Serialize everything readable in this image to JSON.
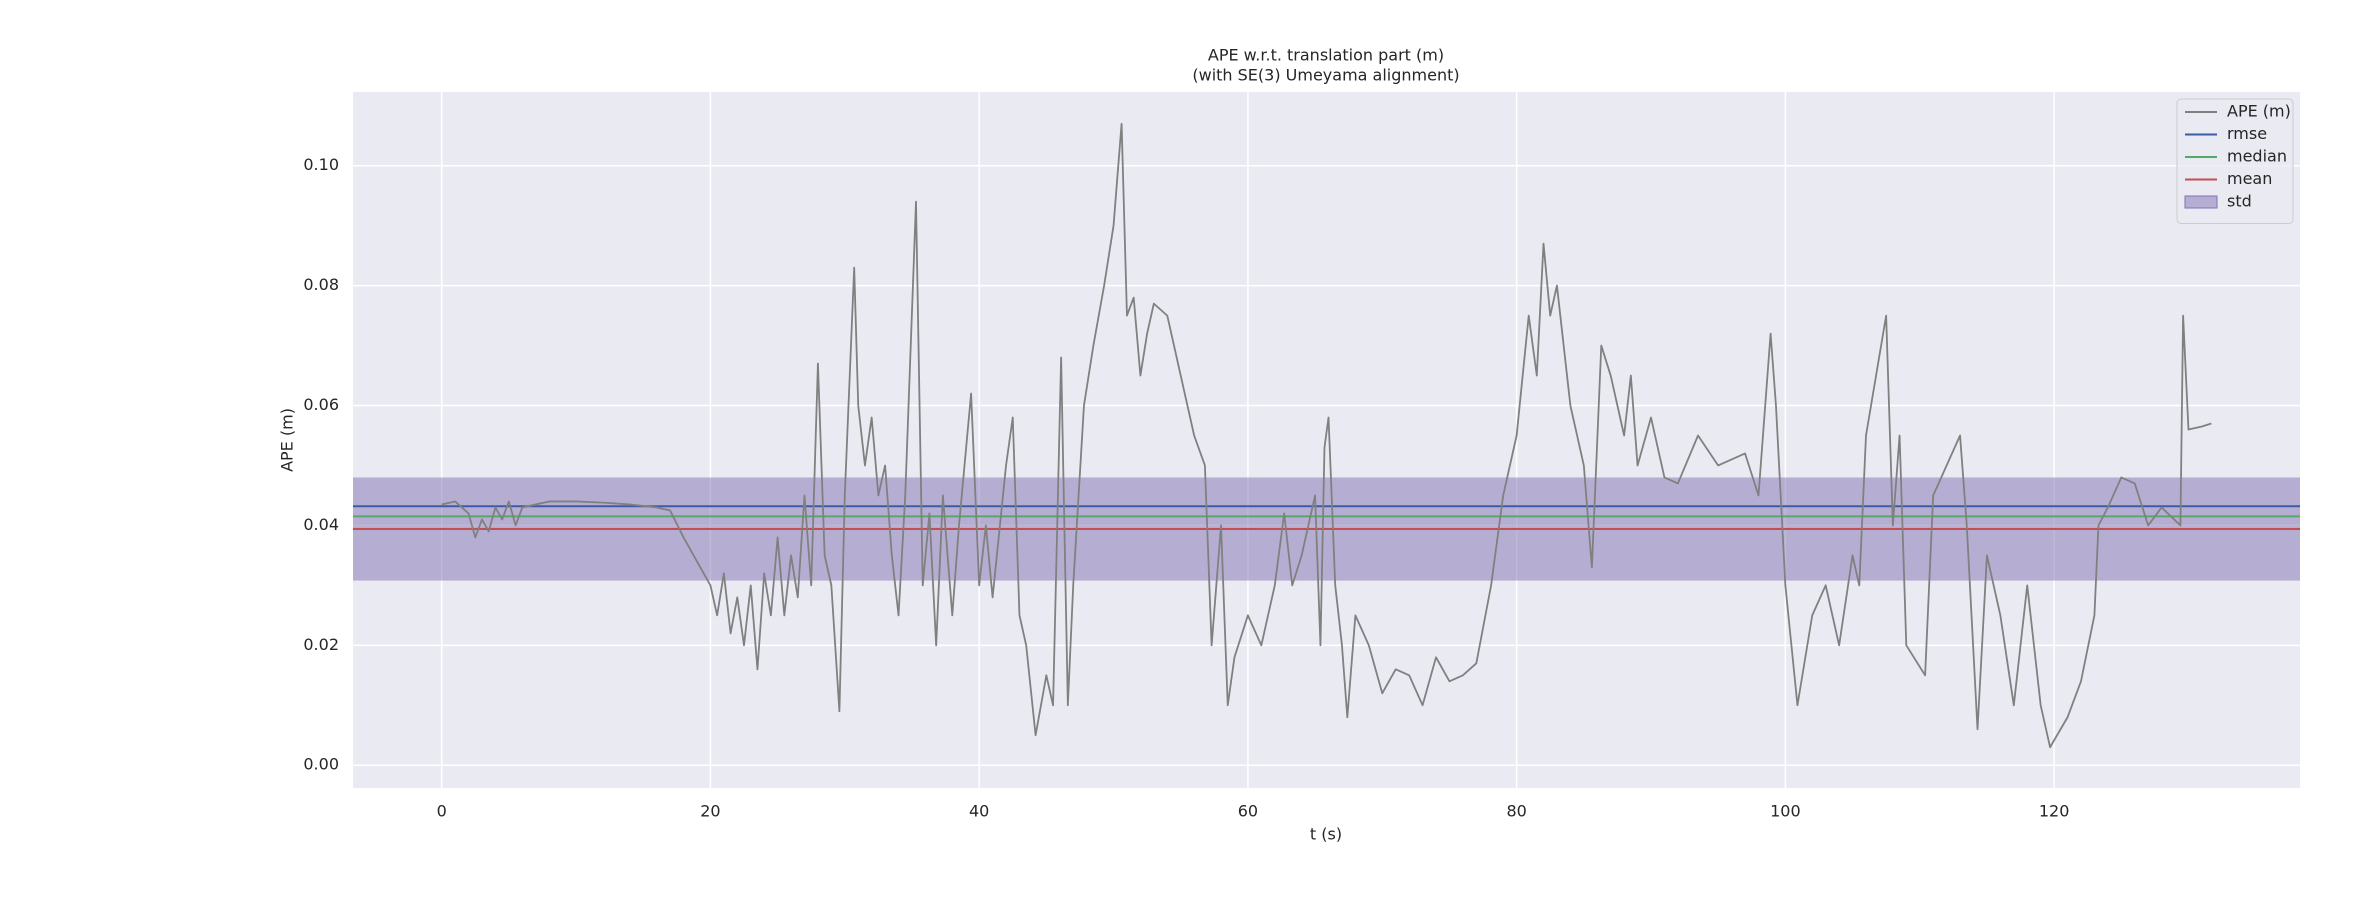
{
  "chart_data": {
    "type": "line",
    "title": "APE w.r.t. translation part (m)",
    "subtitle": "(with SE(3) Umeyama alignment)",
    "xlabel": "t (s)",
    "ylabel": "APE (m)",
    "xlim": [
      -6.6,
      138.3
    ],
    "ylim": [
      -0.0038,
      0.1123
    ],
    "xticks": [
      0,
      20,
      40,
      60,
      80,
      100,
      120
    ],
    "yticks": [
      {
        "value": 0,
        "label": "0.00"
      },
      {
        "value": 0.02,
        "label": "0.02"
      },
      {
        "value": 0.04,
        "label": "0.04"
      },
      {
        "value": 0.06,
        "label": "0.06"
      },
      {
        "value": 0.08,
        "label": "0.08"
      },
      {
        "value": 0.1,
        "label": "0.10"
      }
    ],
    "grid": true,
    "legend": "upper right",
    "x": [
      0,
      1,
      2,
      2.5,
      3,
      3.5,
      4,
      4.5,
      5,
      5.5,
      6,
      7,
      8,
      10,
      12,
      14,
      16,
      17,
      18,
      19,
      20,
      20.5,
      21,
      21.5,
      22,
      22.5,
      23,
      23.5,
      24,
      24.5,
      25,
      25.5,
      26,
      26.5,
      27,
      27.5,
      28,
      28.5,
      29,
      29.6,
      30,
      30.7,
      31,
      31.5,
      32,
      32.5,
      33,
      33.5,
      34,
      34.5,
      35.3,
      35.8,
      36.3,
      36.8,
      37.3,
      38,
      38.5,
      39.4,
      40,
      40.5,
      41,
      42,
      42.5,
      43,
      43.5,
      44.2,
      45,
      45.5,
      46.1,
      46.6,
      47,
      47.8,
      48.5,
      49.3,
      50,
      50.6,
      51,
      51.5,
      52,
      52.5,
      53,
      54,
      55,
      56,
      56.8,
      57.3,
      58,
      58.5,
      59,
      60,
      61,
      62,
      62.7,
      63.3,
      64,
      65,
      65.4,
      65.7,
      66,
      66.5,
      67,
      67.4,
      68,
      69,
      70,
      71,
      72,
      73,
      74,
      75,
      76,
      77,
      78.1,
      79,
      80,
      80.9,
      81.5,
      82,
      82.5,
      83,
      84,
      85,
      85.6,
      86.3,
      87,
      88,
      88.5,
      89,
      90,
      91,
      92,
      93.5,
      95,
      97,
      98,
      98.9,
      99.3,
      100,
      100.9,
      102,
      103,
      104,
      105,
      105.5,
      106,
      107.5,
      108,
      108.5,
      109,
      110.4,
      111,
      112,
      113,
      113.5,
      114.3,
      115,
      116,
      117,
      118,
      118.5,
      119,
      119.7,
      121,
      122,
      123,
      123.3,
      124,
      125,
      126,
      127,
      128,
      129.4,
      129.6,
      130,
      131,
      131.7
    ],
    "series": [
      {
        "name": "APE (m)",
        "color": "#808080",
        "values": [
          0.0435,
          0.044,
          0.042,
          0.038,
          0.041,
          0.039,
          0.043,
          0.041,
          0.044,
          0.04,
          0.043,
          0.0435,
          0.044,
          0.044,
          0.0438,
          0.0435,
          0.043,
          0.0425,
          0.038,
          0.034,
          0.03,
          0.025,
          0.032,
          0.022,
          0.028,
          0.02,
          0.03,
          0.016,
          0.032,
          0.025,
          0.038,
          0.025,
          0.035,
          0.028,
          0.045,
          0.03,
          0.067,
          0.035,
          0.03,
          0.009,
          0.045,
          0.083,
          0.06,
          0.05,
          0.058,
          0.045,
          0.05,
          0.035,
          0.025,
          0.045,
          0.094,
          0.03,
          0.042,
          0.02,
          0.045,
          0.025,
          0.04,
          0.062,
          0.03,
          0.04,
          0.028,
          0.05,
          0.058,
          0.025,
          0.02,
          0.005,
          0.015,
          0.01,
          0.068,
          0.01,
          0.03,
          0.06,
          0.07,
          0.08,
          0.09,
          0.107,
          0.075,
          0.078,
          0.065,
          0.072,
          0.077,
          0.075,
          0.065,
          0.055,
          0.05,
          0.02,
          0.04,
          0.01,
          0.018,
          0.025,
          0.02,
          0.03,
          0.042,
          0.03,
          0.035,
          0.045,
          0.02,
          0.053,
          0.058,
          0.03,
          0.02,
          0.008,
          0.025,
          0.02,
          0.012,
          0.016,
          0.015,
          0.01,
          0.018,
          0.014,
          0.015,
          0.017,
          0.03,
          0.045,
          0.055,
          0.075,
          0.065,
          0.087,
          0.075,
          0.08,
          0.06,
          0.05,
          0.033,
          0.07,
          0.065,
          0.055,
          0.065,
          0.05,
          0.058,
          0.048,
          0.047,
          0.055,
          0.05,
          0.052,
          0.045,
          0.072,
          0.06,
          0.03,
          0.01,
          0.025,
          0.03,
          0.02,
          0.035,
          0.03,
          0.055,
          0.075,
          0.04,
          0.055,
          0.02,
          0.015,
          0.045,
          0.05,
          0.055,
          0.04,
          0.006,
          0.035,
          0.025,
          0.01,
          0.03,
          0.02,
          0.01,
          0.003,
          0.008,
          0.014,
          0.025,
          0.04,
          0.043,
          0.048,
          0.047,
          0.04,
          0.043,
          0.04,
          0.075,
          0.056,
          0.0565,
          0.057
        ]
      }
    ],
    "hlines": [
      {
        "name": "rmse",
        "color": "#3b5ba5",
        "value": 0.0432
      },
      {
        "name": "median",
        "color": "#55a868",
        "value": 0.0415
      },
      {
        "name": "mean",
        "color": "#c44e52",
        "value": 0.0394
      }
    ],
    "band": {
      "name": "std",
      "color": "#8172b2",
      "value": 0.0086
    }
  }
}
